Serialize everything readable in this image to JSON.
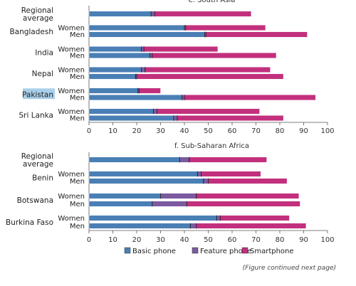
{
  "colors": {
    "basic": "#4a7fb5",
    "feature": "#7b5aa0",
    "smart": "#c2307d",
    "divider": "#1f1f1f",
    "axis": "#555555",
    "highlight": "#a9d0ea"
  },
  "legend": {
    "items": [
      {
        "key": "basic",
        "label": "Basic phone"
      },
      {
        "key": "feature",
        "label": "Feature phone"
      },
      {
        "key": "smart",
        "label": "Smartphone"
      }
    ]
  },
  "footnote": "(Figure continued next page)",
  "chart_data": [
    {
      "type": "bar",
      "orientation": "horizontal",
      "stacked": true,
      "title": "e. South Asia",
      "xlim": [
        0,
        100
      ],
      "xticks": [
        0,
        10,
        20,
        30,
        40,
        50,
        60,
        70,
        80,
        90,
        100
      ],
      "highlighted_country": "Pakistan",
      "groups": [
        {
          "country": [
            "Regional",
            "average"
          ],
          "rows": [
            {
              "label": "",
              "basic": 26,
              "feature": 1.5,
              "smart": 40.5
            }
          ]
        },
        {
          "country": [
            "Bangladesh"
          ],
          "rows": [
            {
              "label": "Women",
              "basic": 40,
              "feature": 0.5,
              "smart": 33.5
            },
            {
              "label": "Men",
              "basic": 48.5,
              "feature": 0.5,
              "smart": 42.5
            }
          ]
        },
        {
          "country": [
            "India"
          ],
          "rows": [
            {
              "label": "Women",
              "basic": 22,
              "feature": 1,
              "smart": 31
            },
            {
              "label": "Men",
              "basic": 25.5,
              "feature": 1,
              "smart": 52
            }
          ]
        },
        {
          "country": [
            "Nepal"
          ],
          "rows": [
            {
              "label": "Women",
              "basic": 22,
              "feature": 1.5,
              "smart": 52.5
            },
            {
              "label": "Men",
              "basic": 19.5,
              "feature": 0.5,
              "smart": 61.5
            }
          ]
        },
        {
          "country": [
            "Pakistan"
          ],
          "rows": [
            {
              "label": "Women",
              "basic": 20.5,
              "feature": 0.5,
              "smart": 9
            },
            {
              "label": "Men",
              "basic": 39,
              "feature": 1,
              "smart": 55
            }
          ]
        },
        {
          "country": [
            "Sri Lanka"
          ],
          "rows": [
            {
              "label": "Women",
              "basic": 27,
              "feature": 1.5,
              "smart": 43
            },
            {
              "label": "Men",
              "basic": 35.5,
              "feature": 1.5,
              "smart": 44.5
            }
          ]
        }
      ]
    },
    {
      "type": "bar",
      "orientation": "horizontal",
      "stacked": true,
      "title": "f. Sub-Saharan Africa",
      "xlim": [
        0,
        100
      ],
      "xticks": [
        0,
        10,
        20,
        30,
        40,
        50,
        60,
        70,
        80,
        90,
        100
      ],
      "groups": [
        {
          "country": [
            "Regional",
            "average"
          ],
          "rows": [
            {
              "label": "",
              "basic": 38,
              "feature": 4,
              "smart": 32.5
            }
          ]
        },
        {
          "country": [
            "Benin"
          ],
          "rows": [
            {
              "label": "Women",
              "basic": 45.5,
              "feature": 1.5,
              "smart": 25
            },
            {
              "label": "Men",
              "basic": 48,
              "feature": 2,
              "smart": 33
            }
          ]
        },
        {
          "country": [
            "Botswana"
          ],
          "rows": [
            {
              "label": "Women",
              "basic": 30,
              "feature": 15,
              "smart": 43
            },
            {
              "label": "Men",
              "basic": 26.5,
              "feature": 14.5,
              "smart": 47.5
            }
          ]
        },
        {
          "country": [
            "Burkina Faso"
          ],
          "rows": [
            {
              "label": "Women",
              "basic": 53.5,
              "feature": 1.5,
              "smart": 29
            },
            {
              "label": "Men",
              "basic": 42.5,
              "feature": 2.5,
              "smart": 46
            }
          ]
        }
      ]
    }
  ]
}
